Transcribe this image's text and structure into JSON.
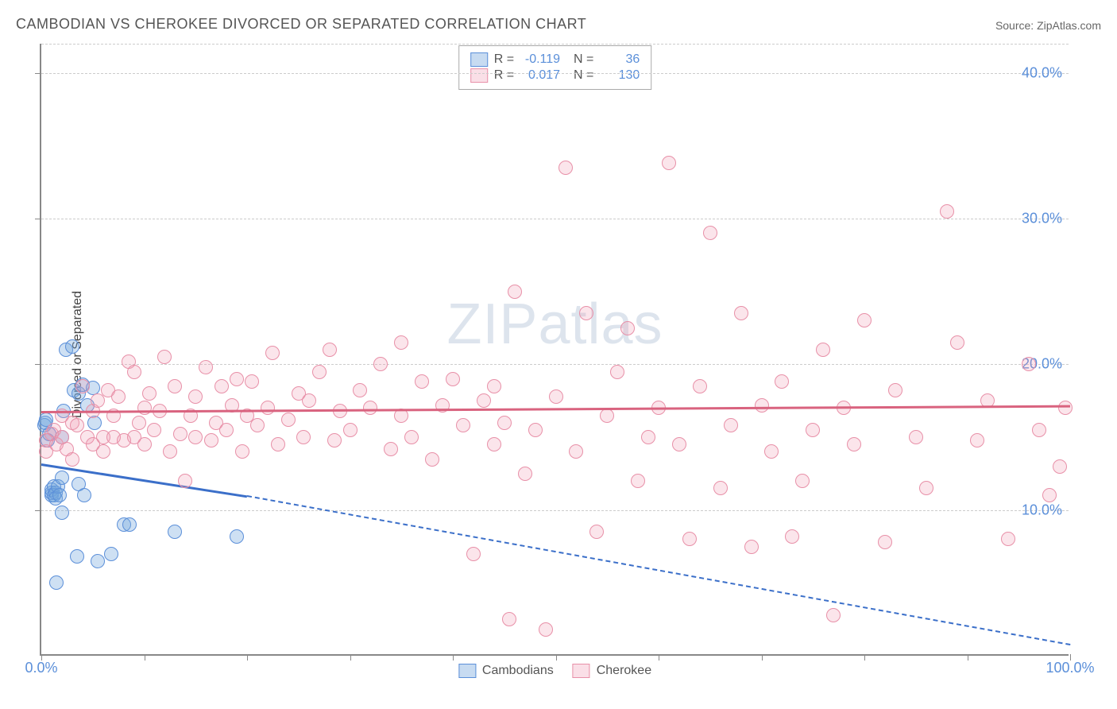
{
  "title": "CAMBODIAN VS CHEROKEE DIVORCED OR SEPARATED CORRELATION CHART",
  "source_label": "Source:",
  "source_value": "ZipAtlas.com",
  "watermark_a": "ZIP",
  "watermark_b": "atlas",
  "y_axis_label": "Divorced or Separated",
  "chart": {
    "type": "scatter",
    "xlim": [
      0,
      100
    ],
    "ylim": [
      0,
      42
    ],
    "x_ticks": [
      0,
      10,
      20,
      30,
      40,
      50,
      60,
      70,
      80,
      90,
      100
    ],
    "x_tick_labels": {
      "0": "0.0%",
      "100": "100.0%"
    },
    "y_gridlines": [
      10,
      20,
      30,
      40,
      42
    ],
    "y_tick_labels": {
      "10": "10.0%",
      "20": "20.0%",
      "30": "30.0%",
      "40": "40.0%"
    },
    "background_color": "#ffffff",
    "grid_color": "#cccccc",
    "axis_color": "#888888",
    "label_color": "#5b8fd9",
    "marker_radius": 9,
    "series": [
      {
        "name": "Cambodians",
        "color_fill": "rgba(115,165,220,0.35)",
        "color_stroke": "#5b8fd9",
        "R": "-0.119",
        "N": "36",
        "trend": {
          "x1": 0,
          "y1": 13.2,
          "x2": 20,
          "y2": 11.0,
          "solid_until_x": 20,
          "dash_to_x": 100,
          "dash_to_y": 0.8,
          "color": "#3b6fc9",
          "width": 2.5
        },
        "points": [
          [
            0.3,
            15.8
          ],
          [
            0.4,
            16.0
          ],
          [
            0.5,
            16.2
          ],
          [
            0.6,
            14.8
          ],
          [
            0.8,
            15.2
          ],
          [
            1.0,
            11.0
          ],
          [
            1.0,
            11.2
          ],
          [
            1.0,
            11.4
          ],
          [
            1.2,
            11.6
          ],
          [
            1.2,
            11.0
          ],
          [
            1.4,
            11.2
          ],
          [
            1.4,
            10.8
          ],
          [
            1.6,
            11.6
          ],
          [
            1.8,
            11.0
          ],
          [
            2.0,
            12.2
          ],
          [
            2.0,
            15.0
          ],
          [
            2.2,
            16.8
          ],
          [
            2.4,
            21.0
          ],
          [
            3.0,
            21.2
          ],
          [
            3.2,
            18.2
          ],
          [
            3.6,
            18.0
          ],
          [
            3.6,
            11.8
          ],
          [
            4.0,
            18.6
          ],
          [
            4.2,
            11.0
          ],
          [
            5.0,
            18.4
          ],
          [
            5.5,
            6.5
          ],
          [
            1.5,
            5.0
          ],
          [
            2.0,
            9.8
          ],
          [
            3.5,
            6.8
          ],
          [
            6.8,
            7.0
          ],
          [
            8.0,
            9.0
          ],
          [
            8.6,
            9.0
          ],
          [
            4.5,
            17.2
          ],
          [
            5.2,
            16.0
          ],
          [
            19.0,
            8.2
          ],
          [
            13.0,
            8.5
          ]
        ]
      },
      {
        "name": "Cherokee",
        "color_fill": "rgba(240,150,175,0.25)",
        "color_stroke": "#e890a8",
        "R": "0.017",
        "N": "130",
        "trend": {
          "x1": 0,
          "y1": 16.8,
          "x2": 100,
          "y2": 17.2,
          "solid_until_x": 100,
          "color": "#d9637f",
          "width": 2.5
        },
        "points": [
          [
            0.5,
            14.0
          ],
          [
            0.5,
            14.8
          ],
          [
            1.0,
            15.2
          ],
          [
            1.2,
            15.5
          ],
          [
            1.5,
            14.5
          ],
          [
            2.0,
            15.0
          ],
          [
            2.0,
            16.5
          ],
          [
            2.5,
            14.2
          ],
          [
            3.0,
            16.0
          ],
          [
            3.0,
            13.5
          ],
          [
            3.5,
            15.8
          ],
          [
            4.0,
            18.5
          ],
          [
            4.5,
            15.0
          ],
          [
            5.0,
            16.8
          ],
          [
            5.0,
            14.5
          ],
          [
            5.5,
            17.5
          ],
          [
            6.0,
            15.0
          ],
          [
            6.0,
            14.0
          ],
          [
            6.5,
            18.2
          ],
          [
            7.0,
            16.5
          ],
          [
            7.0,
            15.0
          ],
          [
            7.5,
            17.8
          ],
          [
            8.0,
            14.8
          ],
          [
            8.5,
            20.2
          ],
          [
            9.0,
            15.0
          ],
          [
            9.0,
            19.5
          ],
          [
            9.5,
            16.0
          ],
          [
            10.0,
            17.0
          ],
          [
            10.0,
            14.5
          ],
          [
            10.5,
            18.0
          ],
          [
            11.0,
            15.5
          ],
          [
            11.5,
            16.8
          ],
          [
            12.0,
            20.5
          ],
          [
            12.5,
            14.0
          ],
          [
            13.0,
            18.5
          ],
          [
            13.5,
            15.2
          ],
          [
            14.0,
            12.0
          ],
          [
            14.5,
            16.5
          ],
          [
            15.0,
            17.8
          ],
          [
            15.0,
            15.0
          ],
          [
            16.0,
            19.8
          ],
          [
            16.5,
            14.8
          ],
          [
            17.0,
            16.0
          ],
          [
            17.5,
            18.5
          ],
          [
            18.0,
            15.5
          ],
          [
            18.5,
            17.2
          ],
          [
            19.0,
            19.0
          ],
          [
            19.5,
            14.0
          ],
          [
            20.0,
            16.5
          ],
          [
            20.5,
            18.8
          ],
          [
            21.0,
            15.8
          ],
          [
            22.0,
            17.0
          ],
          [
            22.5,
            20.8
          ],
          [
            23.0,
            14.5
          ],
          [
            24.0,
            16.2
          ],
          [
            25.0,
            18.0
          ],
          [
            25.5,
            15.0
          ],
          [
            26.0,
            17.5
          ],
          [
            27.0,
            19.5
          ],
          [
            28.0,
            21.0
          ],
          [
            28.5,
            14.8
          ],
          [
            29.0,
            16.8
          ],
          [
            30.0,
            15.5
          ],
          [
            31.0,
            18.2
          ],
          [
            32.0,
            17.0
          ],
          [
            33.0,
            20.0
          ],
          [
            34.0,
            14.2
          ],
          [
            35.0,
            21.5
          ],
          [
            35.0,
            16.5
          ],
          [
            36.0,
            15.0
          ],
          [
            37.0,
            18.8
          ],
          [
            38.0,
            13.5
          ],
          [
            39.0,
            17.2
          ],
          [
            40.0,
            19.0
          ],
          [
            41.0,
            15.8
          ],
          [
            42.0,
            7.0
          ],
          [
            43.0,
            17.5
          ],
          [
            44.0,
            14.5
          ],
          [
            44.0,
            18.5
          ],
          [
            45.0,
            16.0
          ],
          [
            45.5,
            2.5
          ],
          [
            46.0,
            25.0
          ],
          [
            47.0,
            12.5
          ],
          [
            48.0,
            15.5
          ],
          [
            49.0,
            1.8
          ],
          [
            50.0,
            17.8
          ],
          [
            51.0,
            33.5
          ],
          [
            52.0,
            14.0
          ],
          [
            53.0,
            23.5
          ],
          [
            54.0,
            8.5
          ],
          [
            55.0,
            16.5
          ],
          [
            56.0,
            19.5
          ],
          [
            57.0,
            22.5
          ],
          [
            58.0,
            12.0
          ],
          [
            59.0,
            15.0
          ],
          [
            60.0,
            17.0
          ],
          [
            61.0,
            33.8
          ],
          [
            62.0,
            14.5
          ],
          [
            63.0,
            8.0
          ],
          [
            64.0,
            18.5
          ],
          [
            65.0,
            29.0
          ],
          [
            66.0,
            11.5
          ],
          [
            67.0,
            15.8
          ],
          [
            68.0,
            23.5
          ],
          [
            69.0,
            7.5
          ],
          [
            70.0,
            17.2
          ],
          [
            71.0,
            14.0
          ],
          [
            72.0,
            18.8
          ],
          [
            73.0,
            8.2
          ],
          [
            74.0,
            12.0
          ],
          [
            75.0,
            15.5
          ],
          [
            76.0,
            21.0
          ],
          [
            77.0,
            2.8
          ],
          [
            78.0,
            17.0
          ],
          [
            79.0,
            14.5
          ],
          [
            80.0,
            23.0
          ],
          [
            82.0,
            7.8
          ],
          [
            83.0,
            18.2
          ],
          [
            85.0,
            15.0
          ],
          [
            86.0,
            11.5
          ],
          [
            88.0,
            30.5
          ],
          [
            89.0,
            21.5
          ],
          [
            91.0,
            14.8
          ],
          [
            92.0,
            17.5
          ],
          [
            94.0,
            8.0
          ],
          [
            96.0,
            20.0
          ],
          [
            97.0,
            15.5
          ],
          [
            98.0,
            11.0
          ],
          [
            99.0,
            13.0
          ],
          [
            99.5,
            17.0
          ]
        ]
      }
    ]
  },
  "legend_bottom": [
    {
      "swatch": "blue",
      "label": "Cambodians"
    },
    {
      "swatch": "pink",
      "label": "Cherokee"
    }
  ]
}
